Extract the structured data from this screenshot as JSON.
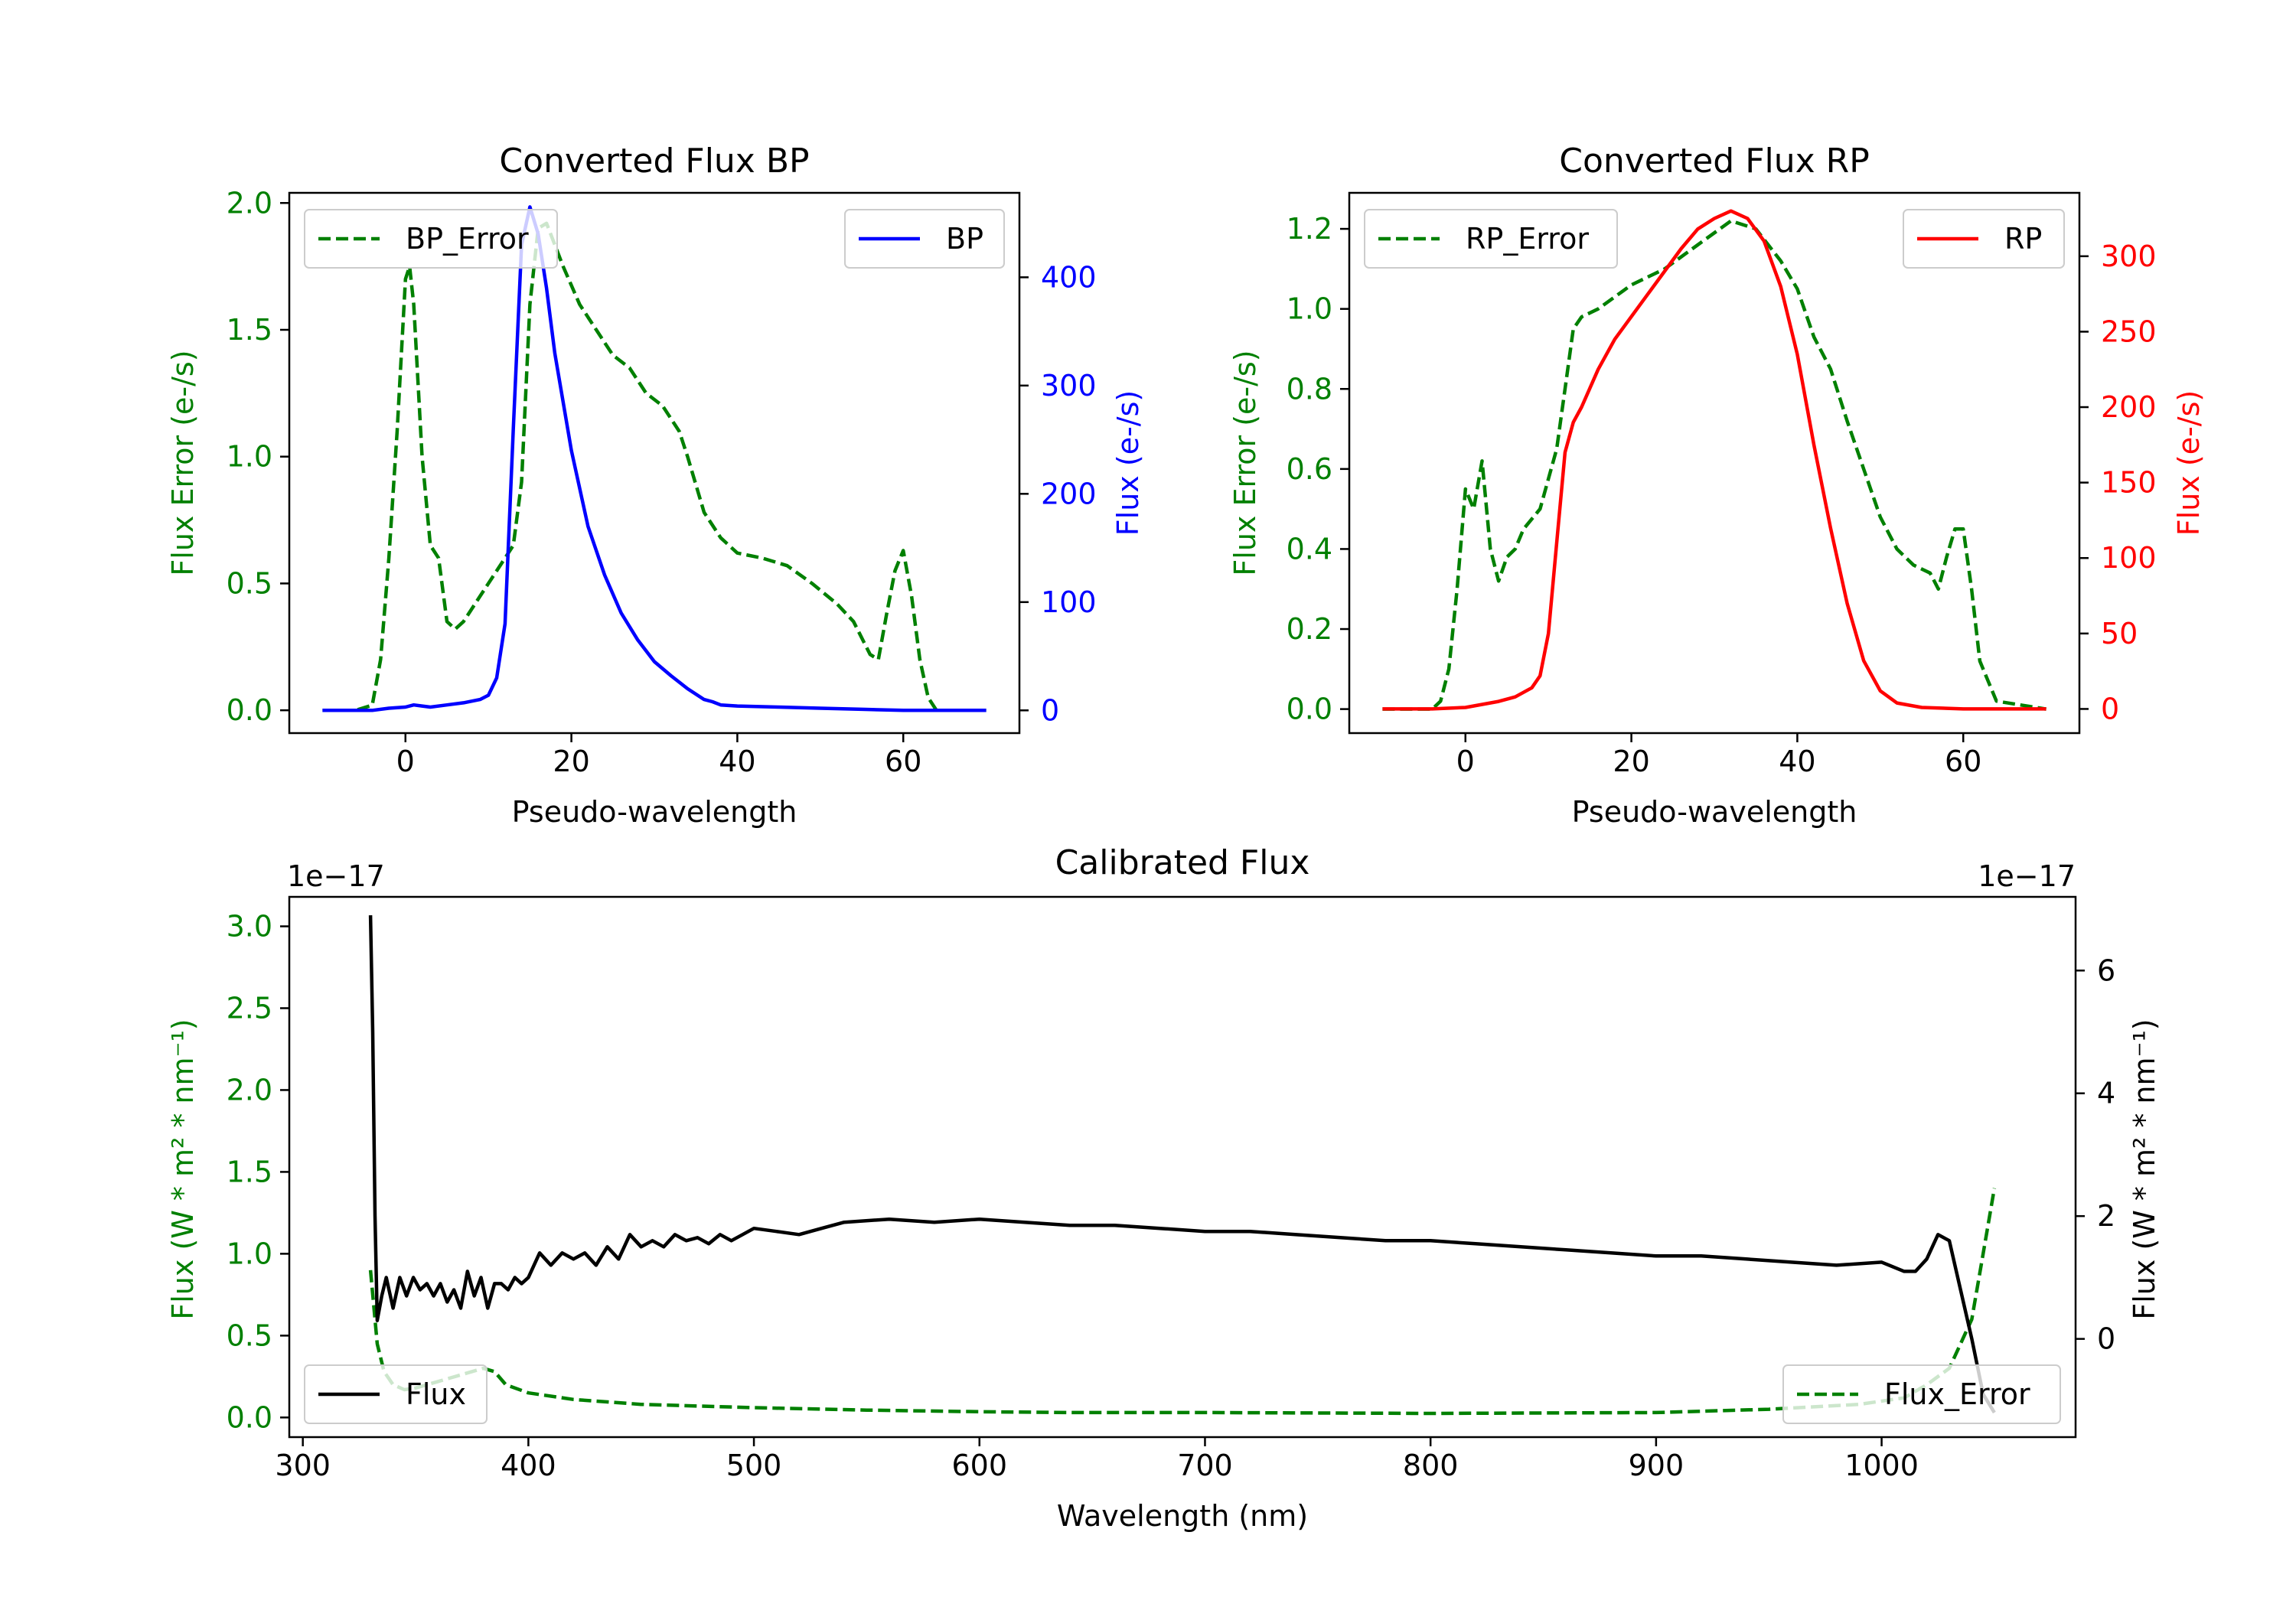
{
  "chart_data": [
    {
      "type": "line",
      "title": "Converted Flux BP",
      "xlabel": "Pseudo-wavelength",
      "ylabel_left": "Flux Error (e-/s)",
      "ylabel_right": "Flux (e-/s)",
      "xlim": [
        -14,
        74
      ],
      "ylim_left": [
        -0.09,
        2.04
      ],
      "ylim_right": [
        -21,
        478
      ],
      "xticks": [
        "0",
        "20",
        "40",
        "60"
      ],
      "yticks_left": [
        "0.0",
        "0.5",
        "1.0",
        "1.5",
        "2.0"
      ],
      "yticks_right": [
        "0",
        "100",
        "200",
        "300",
        "400"
      ],
      "legend": [
        {
          "label": "BP_Error",
          "position": "upper left"
        },
        {
          "label": "BP",
          "position": "upper right"
        }
      ],
      "series": [
        {
          "name": "BP_Error",
          "axis": "left",
          "color": "#008000",
          "style": "dashed",
          "x": [
            -10,
            -6,
            -4,
            -3,
            -2,
            -1,
            0,
            0.5,
            1,
            2,
            3,
            4,
            5,
            6,
            7,
            9,
            11,
            13,
            14,
            15,
            16,
            17,
            19,
            21,
            23,
            25,
            27,
            29,
            31,
            33,
            34,
            36,
            38,
            40,
            43,
            46,
            49,
            52,
            54,
            56,
            57,
            58,
            59,
            60,
            61,
            62,
            63,
            64,
            65,
            70
          ],
          "y": [
            0,
            0,
            0.02,
            0.2,
            0.6,
            1.1,
            1.7,
            1.75,
            1.6,
            1.0,
            0.65,
            0.6,
            0.35,
            0.32,
            0.35,
            0.45,
            0.55,
            0.65,
            0.9,
            1.6,
            1.9,
            1.92,
            1.75,
            1.6,
            1.5,
            1.4,
            1.35,
            1.25,
            1.2,
            1.1,
            1.0,
            0.78,
            0.68,
            0.62,
            0.6,
            0.57,
            0.5,
            0.42,
            0.35,
            0.22,
            0.2,
            0.38,
            0.55,
            0.63,
            0.45,
            0.2,
            0.05,
            0,
            0,
            0
          ]
        },
        {
          "name": "BP",
          "axis": "right",
          "color": "#0000ff",
          "style": "solid",
          "x": [
            -10,
            -6,
            -4,
            -2,
            0,
            1,
            2,
            3,
            5,
            7,
            9,
            10,
            11,
            12,
            13,
            14,
            15,
            16,
            17,
            18,
            20,
            22,
            24,
            26,
            28,
            30,
            32,
            34,
            36,
            37,
            38,
            40,
            45,
            50,
            55,
            60,
            65,
            70
          ],
          "y": [
            0,
            0,
            0,
            2,
            3,
            5,
            4,
            3,
            5,
            7,
            10,
            14,
            30,
            80,
            260,
            430,
            465,
            440,
            390,
            330,
            240,
            170,
            125,
            90,
            65,
            45,
            32,
            20,
            10,
            8,
            5,
            4,
            3,
            2,
            1,
            0,
            0,
            0
          ]
        }
      ]
    },
    {
      "type": "line",
      "title": "Converted Flux RP",
      "xlabel": "Pseudo-wavelength",
      "ylabel_left": "Flux Error (e-/s)",
      "ylabel_right": "Flux (e-/s)",
      "xlim": [
        -14,
        74
      ],
      "ylim_left": [
        -0.06,
        1.29
      ],
      "ylim_right": [
        -16,
        342
      ],
      "xticks": [
        "0",
        "20",
        "40",
        "60"
      ],
      "yticks_left": [
        "0.0",
        "0.2",
        "0.4",
        "0.6",
        "0.8",
        "1.0",
        "1.2"
      ],
      "yticks_right": [
        "0",
        "50",
        "100",
        "150",
        "200",
        "250",
        "300"
      ],
      "legend": [
        {
          "label": "RP_Error",
          "position": "upper left"
        },
        {
          "label": "RP",
          "position": "upper right"
        }
      ],
      "series": [
        {
          "name": "RP_Error",
          "axis": "left",
          "color": "#008000",
          "style": "dashed",
          "x": [
            -10,
            -4,
            -3,
            -2,
            -1,
            0,
            1,
            2,
            3,
            4,
            5,
            6,
            7,
            9,
            11,
            12,
            13,
            14,
            16,
            18,
            20,
            24,
            28,
            32,
            35,
            38,
            40,
            42,
            44,
            46,
            48,
            50,
            52,
            54,
            56,
            57,
            58,
            59,
            60,
            61,
            62,
            64,
            70
          ],
          "y": [
            0,
            0,
            0.02,
            0.1,
            0.3,
            0.55,
            0.5,
            0.62,
            0.4,
            0.32,
            0.38,
            0.4,
            0.45,
            0.5,
            0.65,
            0.8,
            0.95,
            0.98,
            1.0,
            1.03,
            1.06,
            1.1,
            1.16,
            1.22,
            1.2,
            1.12,
            1.05,
            0.93,
            0.85,
            0.72,
            0.6,
            0.48,
            0.4,
            0.36,
            0.34,
            0.3,
            0.38,
            0.45,
            0.45,
            0.3,
            0.12,
            0.02,
            0
          ]
        },
        {
          "name": "RP",
          "axis": "right",
          "color": "#ff0000",
          "style": "solid",
          "x": [
            -10,
            -4,
            0,
            4,
            6,
            8,
            9,
            10,
            11,
            12,
            13,
            14,
            16,
            18,
            20,
            22,
            24,
            26,
            28,
            30,
            32,
            34,
            36,
            38,
            40,
            42,
            44,
            46,
            48,
            50,
            52,
            55,
            60,
            70
          ],
          "y": [
            0,
            0,
            1,
            5,
            8,
            14,
            22,
            50,
            110,
            170,
            190,
            200,
            225,
            245,
            260,
            275,
            290,
            305,
            318,
            325,
            330,
            325,
            310,
            280,
            235,
            175,
            120,
            70,
            32,
            12,
            4,
            1,
            0,
            0
          ]
        }
      ]
    },
    {
      "type": "line",
      "title": "Calibrated Flux",
      "xlabel": "Wavelength (nm)",
      "ylabel_left": "Flux (W * m² * nm⁻¹)",
      "ylabel_right": "Flux (W * m² * nm⁻¹)",
      "offset_left": "1e−17",
      "offset_right": "1e−17",
      "xlim": [
        294,
        1086
      ],
      "ylim_left": [
        -0.12,
        3.18
      ],
      "ylim_right": [
        -1.6,
        7.2
      ],
      "xticks": [
        "300",
        "400",
        "500",
        "600",
        "700",
        "800",
        "900",
        "1000"
      ],
      "yticks_left": [
        "0.0",
        "0.5",
        "1.0",
        "1.5",
        "2.0",
        "2.5",
        "3.0"
      ],
      "yticks_right": [
        "0",
        "2",
        "4",
        "6"
      ],
      "legend": [
        {
          "label": "Flux",
          "position": "lower left"
        },
        {
          "label": "Flux_Error",
          "position": "lower right"
        }
      ],
      "series": [
        {
          "name": "Flux_Error",
          "axis": "left",
          "color": "#008000",
          "style": "dashed",
          "x": [
            330,
            333,
            336,
            340,
            345,
            350,
            360,
            370,
            380,
            385,
            390,
            400,
            420,
            450,
            500,
            550,
            600,
            640,
            700,
            800,
            900,
            950,
            990,
            1010,
            1020,
            1030,
            1040,
            1045,
            1050
          ],
          "y": [
            0.9,
            0.45,
            0.28,
            0.2,
            0.17,
            0.18,
            0.22,
            0.26,
            0.3,
            0.28,
            0.2,
            0.15,
            0.11,
            0.08,
            0.06,
            0.045,
            0.035,
            0.03,
            0.03,
            0.025,
            0.03,
            0.05,
            0.08,
            0.12,
            0.2,
            0.3,
            0.6,
            1.0,
            1.4
          ]
        },
        {
          "name": "Flux",
          "axis": "right",
          "color": "#000000",
          "style": "solid",
          "x": [
            330,
            331,
            332,
            333,
            335,
            337,
            340,
            343,
            346,
            349,
            352,
            355,
            358,
            361,
            364,
            367,
            370,
            373,
            376,
            379,
            382,
            385,
            388,
            391,
            394,
            397,
            400,
            405,
            410,
            415,
            420,
            425,
            430,
            435,
            440,
            445,
            450,
            455,
            460,
            465,
            470,
            475,
            480,
            485,
            490,
            495,
            500,
            510,
            520,
            530,
            540,
            560,
            580,
            600,
            620,
            640,
            660,
            680,
            700,
            720,
            740,
            760,
            780,
            800,
            820,
            840,
            860,
            880,
            900,
            920,
            940,
            960,
            980,
            1000,
            1010,
            1015,
            1020,
            1025,
            1030,
            1035,
            1040,
            1045,
            1050
          ],
          "y": [
            6.9,
            5.0,
            2.0,
            0.3,
            0.7,
            1.0,
            0.5,
            1.0,
            0.7,
            1.0,
            0.8,
            0.9,
            0.7,
            0.9,
            0.6,
            0.8,
            0.5,
            1.1,
            0.7,
            1.0,
            0.5,
            0.9,
            0.9,
            0.8,
            1.0,
            0.9,
            1.0,
            1.4,
            1.2,
            1.4,
            1.3,
            1.4,
            1.2,
            1.5,
            1.3,
            1.7,
            1.5,
            1.6,
            1.5,
            1.7,
            1.6,
            1.65,
            1.55,
            1.7,
            1.6,
            1.7,
            1.8,
            1.75,
            1.7,
            1.8,
            1.9,
            1.95,
            1.9,
            1.95,
            1.9,
            1.85,
            1.85,
            1.8,
            1.75,
            1.75,
            1.7,
            1.65,
            1.6,
            1.6,
            1.55,
            1.5,
            1.45,
            1.4,
            1.35,
            1.35,
            1.3,
            1.25,
            1.2,
            1.25,
            1.1,
            1.1,
            1.3,
            1.7,
            1.6,
            0.8,
            0.0,
            -0.9,
            -1.2
          ]
        }
      ]
    }
  ]
}
